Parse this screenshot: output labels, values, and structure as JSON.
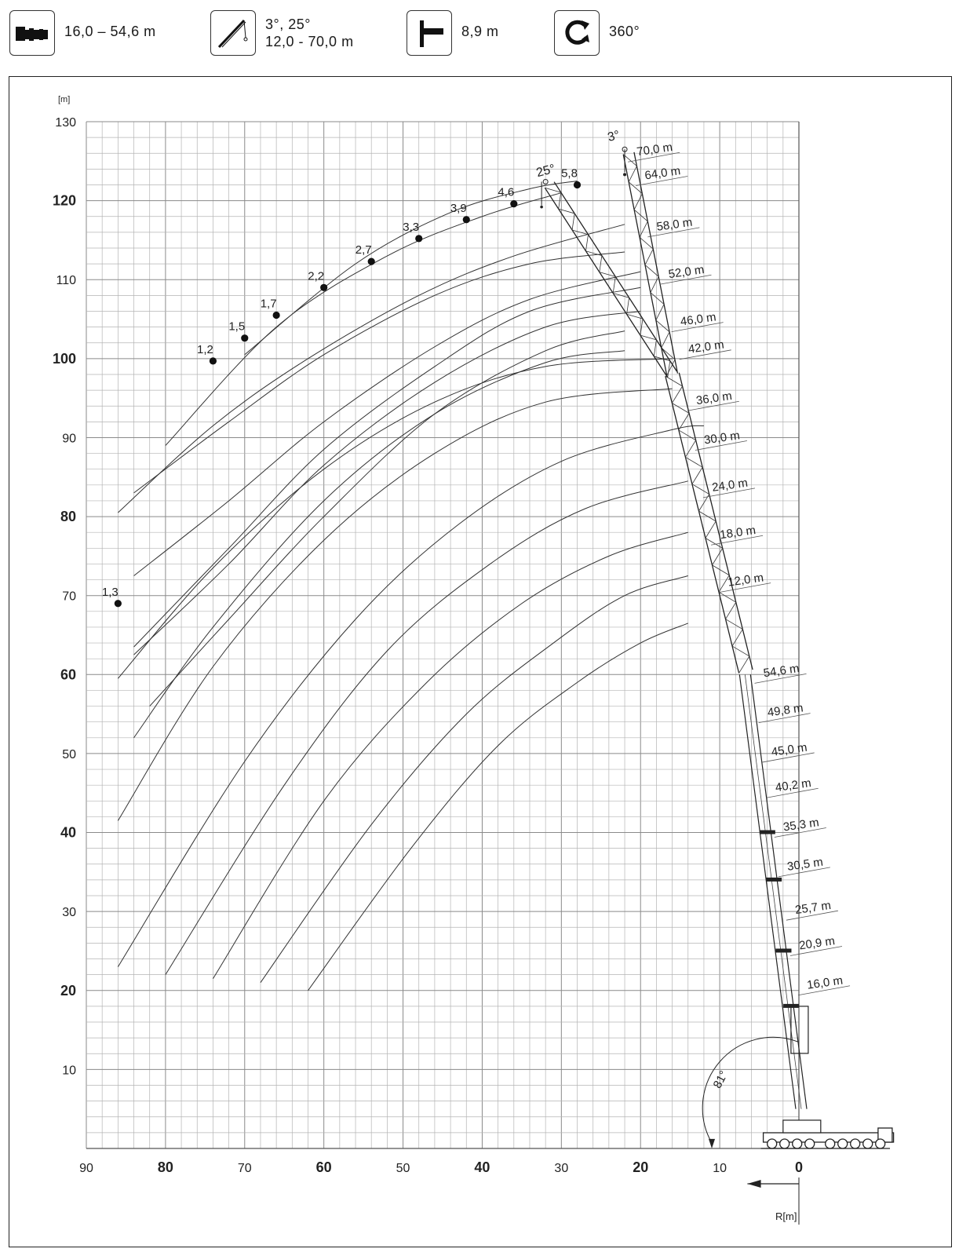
{
  "header": {
    "items": [
      {
        "icon": "outrigger-base-icon",
        "lines": [
          "16,0 – 54,6 m"
        ]
      },
      {
        "icon": "luffing-jib-icon",
        "lines": [
          "3°, 25°",
          "12,0 - 70,0 m"
        ]
      },
      {
        "icon": "boom-offset-icon",
        "lines": [
          "8,9 m"
        ]
      },
      {
        "icon": "slewing-360-icon",
        "lines": [
          "360°"
        ]
      }
    ]
  },
  "chart_data": {
    "type": "line",
    "title": "",
    "ylabel": "[m]",
    "xlabel": "R[m]",
    "xlim": [
      90,
      0
    ],
    "ylim": [
      0,
      130
    ],
    "x_ticks": [
      {
        "value": 90,
        "label": "90",
        "bold": false
      },
      {
        "value": 80,
        "label": "80",
        "bold": true
      },
      {
        "value": 70,
        "label": "70",
        "bold": false
      },
      {
        "value": 60,
        "label": "60",
        "bold": true
      },
      {
        "value": 50,
        "label": "50",
        "bold": false
      },
      {
        "value": 40,
        "label": "40",
        "bold": true
      },
      {
        "value": 30,
        "label": "30",
        "bold": false
      },
      {
        "value": 20,
        "label": "20",
        "bold": true
      },
      {
        "value": 10,
        "label": "10",
        "bold": false
      },
      {
        "value": 0,
        "label": "0",
        "bold": true
      }
    ],
    "y_ticks": [
      {
        "value": 130,
        "label": "130",
        "bold": false
      },
      {
        "value": 120,
        "label": "120",
        "bold": true
      },
      {
        "value": 110,
        "label": "110",
        "bold": false
      },
      {
        "value": 100,
        "label": "100",
        "bold": true
      },
      {
        "value": 90,
        "label": "90",
        "bold": false
      },
      {
        "value": 80,
        "label": "80",
        "bold": true
      },
      {
        "value": 70,
        "label": "70",
        "bold": false
      },
      {
        "value": 60,
        "label": "60",
        "bold": true
      },
      {
        "value": 50,
        "label": "50",
        "bold": false
      },
      {
        "value": 40,
        "label": "40",
        "bold": true
      },
      {
        "value": 30,
        "label": "30",
        "bold": false
      },
      {
        "value": 20,
        "label": "20",
        "bold": true
      },
      {
        "value": 10,
        "label": "10",
        "bold": false
      }
    ],
    "grid": true,
    "arcs": [
      {
        "x": [
          62,
          49,
          38,
          28,
          20,
          14
        ],
        "y": [
          20,
          38,
          51,
          59,
          64,
          66.5
        ]
      },
      {
        "x": [
          68,
          54,
          42,
          31,
          22,
          14
        ],
        "y": [
          21,
          41,
          55,
          64,
          70,
          72.5
        ]
      },
      {
        "x": [
          74,
          60,
          47,
          35,
          24,
          14
        ],
        "y": [
          21.5,
          44,
          59,
          69,
          75,
          78
        ]
      },
      {
        "x": [
          80,
          65,
          52,
          39,
          27,
          14
        ],
        "y": [
          22,
          46,
          63,
          74,
          81,
          84.5
        ]
      },
      {
        "x": [
          86,
          70,
          56,
          43,
          30,
          16,
          12
        ],
        "y": [
          23,
          49,
          67,
          79,
          87,
          91,
          91.5
        ]
      },
      {
        "x": [
          86,
          74,
          60,
          46,
          32,
          16
        ],
        "y": [
          41.5,
          61,
          77,
          88,
          94.5,
          96.2
        ]
      },
      {
        "x": [
          86,
          74,
          60,
          46,
          32,
          16
        ],
        "y": [
          59.5,
          73.5,
          86,
          94.5,
          99,
          100
        ]
      },
      {
        "x": [
          84,
          74,
          60,
          46,
          32,
          22
        ],
        "y": [
          52,
          66,
          82,
          93,
          99.5,
          101
        ]
      },
      {
        "x": [
          82,
          72,
          60,
          46,
          32,
          22
        ],
        "y": [
          56,
          67,
          80,
          93,
          101,
          103.5
        ]
      },
      {
        "x": [
          84,
          72,
          60,
          46,
          32,
          20
        ],
        "y": [
          62.5,
          74,
          86.5,
          97,
          104,
          106
        ]
      },
      {
        "x": [
          84,
          72,
          60,
          46,
          34,
          20
        ],
        "y": [
          63.5,
          76,
          88.5,
          99,
          106,
          109
        ]
      },
      {
        "x": [
          84,
          72,
          60,
          46,
          34,
          20
        ],
        "y": [
          72.5,
          82,
          92,
          101.5,
          107.5,
          111
        ]
      },
      {
        "x": [
          84,
          72,
          60,
          46,
          34,
          22
        ],
        "y": [
          83,
          92,
          100.5,
          108,
          112,
          113.5
        ]
      },
      {
        "x": [
          86,
          74,
          62,
          48,
          36,
          22
        ],
        "y": [
          80.5,
          91.5,
          100,
          108,
          113,
          117
        ]
      },
      {
        "x": [
          80,
          66,
          52,
          40,
          30
        ],
        "y": [
          89,
          104,
          113,
          118,
          121
        ]
      },
      {
        "x": [
          70,
          56,
          44,
          34,
          28
        ],
        "y": [
          100.5,
          112,
          118.5,
          121.5,
          122.5
        ]
      }
    ],
    "load_points": [
      {
        "x": 86,
        "y": 69,
        "label": "1,3"
      },
      {
        "x": 74,
        "y": 99.7,
        "label": "1,2"
      },
      {
        "x": 70,
        "y": 102.6,
        "label": "1,5"
      },
      {
        "x": 66,
        "y": 105.5,
        "label": "1,7"
      },
      {
        "x": 60,
        "y": 109,
        "label": "2,2"
      },
      {
        "x": 54,
        "y": 112.3,
        "label": "2,7"
      },
      {
        "x": 48,
        "y": 115.2,
        "label": "3,3"
      },
      {
        "x": 42,
        "y": 117.6,
        "label": "3,9"
      },
      {
        "x": 36,
        "y": 119.6,
        "label": "4,6"
      },
      {
        "x": 28,
        "y": 122,
        "label": "5,8"
      }
    ],
    "jib_angle_labels": [
      {
        "x": 33,
        "y": 123,
        "label": "25°"
      },
      {
        "x": 24,
        "y": 127.5,
        "label": "3°"
      }
    ],
    "jib_lengths": [
      {
        "x": 21,
        "y": 125.5,
        "label": "70,0 m"
      },
      {
        "x": 20,
        "y": 122.5,
        "label": "64,0 m"
      },
      {
        "x": 18.5,
        "y": 116,
        "label": "58,0 m"
      },
      {
        "x": 17,
        "y": 110,
        "label": "52,0 m"
      },
      {
        "x": 15.5,
        "y": 104,
        "label": "46,0 m"
      },
      {
        "x": 14.5,
        "y": 100.5,
        "label": "42,0 m"
      },
      {
        "x": 13.5,
        "y": 94,
        "label": "36,0 m"
      },
      {
        "x": 12.5,
        "y": 89,
        "label": "30,0 m"
      },
      {
        "x": 11.5,
        "y": 83,
        "label": "24,0 m"
      },
      {
        "x": 10.5,
        "y": 77,
        "label": "18,0 m"
      },
      {
        "x": 9.5,
        "y": 71,
        "label": "12,0 m"
      }
    ],
    "main_boom_lengths": [
      {
        "x": 5,
        "y": 59.5,
        "label": "54,6 m"
      },
      {
        "x": 4.5,
        "y": 54.5,
        "label": "49,8 m"
      },
      {
        "x": 4,
        "y": 49.5,
        "label": "45,0 m"
      },
      {
        "x": 3.5,
        "y": 45,
        "label": "40,2 m"
      },
      {
        "x": 2.5,
        "y": 40,
        "label": "35,3 m"
      },
      {
        "x": 2,
        "y": 35,
        "label": "30,5 m"
      },
      {
        "x": 1,
        "y": 29.5,
        "label": "25,7 m"
      },
      {
        "x": 0.5,
        "y": 25,
        "label": "20,9 m"
      },
      {
        "x": -0.5,
        "y": 20,
        "label": "16,0 m"
      }
    ],
    "boom_angle_label": "81°"
  }
}
